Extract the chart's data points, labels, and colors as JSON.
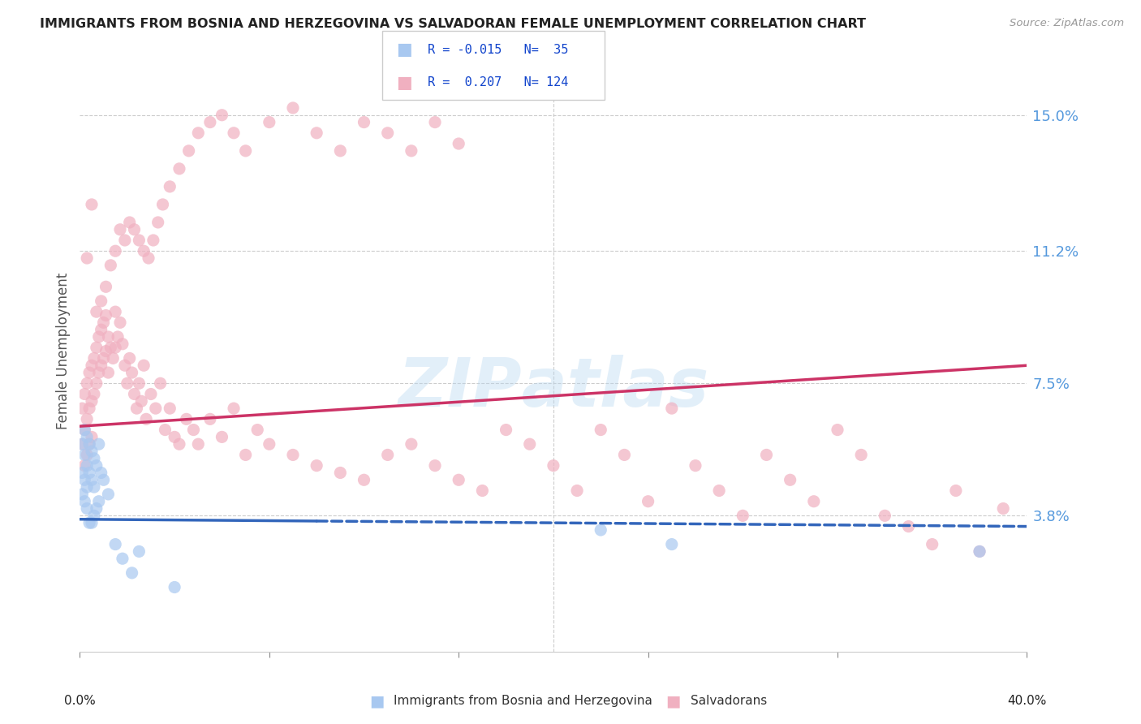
{
  "title": "IMMIGRANTS FROM BOSNIA AND HERZEGOVINA VS SALVADORAN FEMALE UNEMPLOYMENT CORRELATION CHART",
  "source": "Source: ZipAtlas.com",
  "ylabel": "Female Unemployment",
  "yticks": [
    0.038,
    0.075,
    0.112,
    0.15
  ],
  "ytick_labels": [
    "3.8%",
    "7.5%",
    "11.2%",
    "15.0%"
  ],
  "xlim": [
    0.0,
    0.4
  ],
  "ylim": [
    0.0,
    0.168
  ],
  "color_blue": "#a8c8f0",
  "color_blue_line": "#3366bb",
  "color_pink": "#f0b0c0",
  "color_pink_line": "#cc3366",
  "color_ytick": "#5599dd",
  "bottom_label1": "Immigrants from Bosnia and Herzegovina",
  "bottom_label2": "Salvadorans",
  "blue_scatter_x": [
    0.001,
    0.001,
    0.001,
    0.002,
    0.002,
    0.002,
    0.002,
    0.003,
    0.003,
    0.003,
    0.003,
    0.004,
    0.004,
    0.004,
    0.005,
    0.005,
    0.005,
    0.006,
    0.006,
    0.006,
    0.007,
    0.007,
    0.008,
    0.008,
    0.009,
    0.01,
    0.012,
    0.015,
    0.018,
    0.022,
    0.025,
    0.04,
    0.22,
    0.25,
    0.38
  ],
  "blue_scatter_y": [
    0.058,
    0.05,
    0.044,
    0.062,
    0.055,
    0.048,
    0.042,
    0.06,
    0.052,
    0.046,
    0.04,
    0.058,
    0.05,
    0.036,
    0.056,
    0.048,
    0.036,
    0.054,
    0.046,
    0.038,
    0.052,
    0.04,
    0.058,
    0.042,
    0.05,
    0.048,
    0.044,
    0.03,
    0.026,
    0.022,
    0.028,
    0.018,
    0.034,
    0.03,
    0.028
  ],
  "pink_scatter_x": [
    0.001,
    0.001,
    0.002,
    0.002,
    0.002,
    0.003,
    0.003,
    0.003,
    0.004,
    0.004,
    0.004,
    0.005,
    0.005,
    0.005,
    0.006,
    0.006,
    0.007,
    0.007,
    0.008,
    0.008,
    0.009,
    0.009,
    0.01,
    0.01,
    0.011,
    0.011,
    0.012,
    0.012,
    0.013,
    0.014,
    0.015,
    0.015,
    0.016,
    0.017,
    0.018,
    0.019,
    0.02,
    0.021,
    0.022,
    0.023,
    0.024,
    0.025,
    0.026,
    0.027,
    0.028,
    0.03,
    0.032,
    0.034,
    0.036,
    0.038,
    0.04,
    0.042,
    0.045,
    0.048,
    0.05,
    0.055,
    0.06,
    0.065,
    0.07,
    0.075,
    0.08,
    0.09,
    0.1,
    0.11,
    0.12,
    0.13,
    0.14,
    0.15,
    0.16,
    0.17,
    0.18,
    0.19,
    0.2,
    0.21,
    0.22,
    0.23,
    0.24,
    0.25,
    0.26,
    0.27,
    0.28,
    0.29,
    0.3,
    0.31,
    0.32,
    0.33,
    0.34,
    0.35,
    0.36,
    0.37,
    0.38,
    0.39,
    0.003,
    0.005,
    0.007,
    0.009,
    0.011,
    0.013,
    0.015,
    0.017,
    0.019,
    0.021,
    0.023,
    0.025,
    0.027,
    0.029,
    0.031,
    0.033,
    0.035,
    0.038,
    0.042,
    0.046,
    0.05,
    0.055,
    0.06,
    0.065,
    0.07,
    0.08,
    0.09,
    0.1,
    0.11,
    0.12,
    0.13,
    0.14,
    0.15,
    0.16
  ],
  "pink_scatter_y": [
    0.068,
    0.058,
    0.072,
    0.062,
    0.052,
    0.075,
    0.065,
    0.055,
    0.078,
    0.068,
    0.058,
    0.08,
    0.07,
    0.06,
    0.082,
    0.072,
    0.085,
    0.075,
    0.088,
    0.078,
    0.09,
    0.08,
    0.092,
    0.082,
    0.094,
    0.084,
    0.088,
    0.078,
    0.085,
    0.082,
    0.095,
    0.085,
    0.088,
    0.092,
    0.086,
    0.08,
    0.075,
    0.082,
    0.078,
    0.072,
    0.068,
    0.075,
    0.07,
    0.08,
    0.065,
    0.072,
    0.068,
    0.075,
    0.062,
    0.068,
    0.06,
    0.058,
    0.065,
    0.062,
    0.058,
    0.065,
    0.06,
    0.068,
    0.055,
    0.062,
    0.058,
    0.055,
    0.052,
    0.05,
    0.048,
    0.055,
    0.058,
    0.052,
    0.048,
    0.045,
    0.062,
    0.058,
    0.052,
    0.045,
    0.062,
    0.055,
    0.042,
    0.068,
    0.052,
    0.045,
    0.038,
    0.055,
    0.048,
    0.042,
    0.062,
    0.055,
    0.038,
    0.035,
    0.03,
    0.045,
    0.028,
    0.04,
    0.11,
    0.125,
    0.095,
    0.098,
    0.102,
    0.108,
    0.112,
    0.118,
    0.115,
    0.12,
    0.118,
    0.115,
    0.112,
    0.11,
    0.115,
    0.12,
    0.125,
    0.13,
    0.135,
    0.14,
    0.145,
    0.148,
    0.15,
    0.145,
    0.14,
    0.148,
    0.152,
    0.145,
    0.14,
    0.148,
    0.145,
    0.14,
    0.148,
    0.142
  ]
}
